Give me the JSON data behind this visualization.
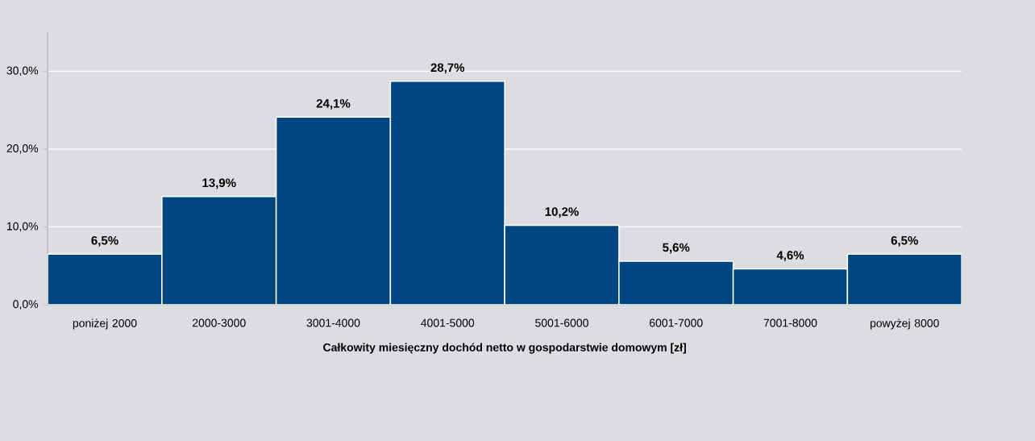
{
  "chart_data": {
    "type": "bar",
    "xlabel": "Całkowity miesięczny dochód netto w gospodarstwie domowym [zł]",
    "categories": [
      "poniżej 2000",
      "2000-3000",
      "3001-4000",
      "4001-5000",
      "5001-6000",
      "6001-7000",
      "7001-8000",
      "powyżej 8000"
    ],
    "values": [
      6.5,
      13.9,
      24.1,
      28.7,
      10.2,
      5.6,
      4.6,
      6.5
    ],
    "value_labels": [
      "6,5%",
      "13,9%",
      "24,1%",
      "28,7%",
      "10,2%",
      "5,6%",
      "4,6%",
      "6,5%"
    ],
    "color": "#004680",
    "ylim": [
      0,
      35
    ],
    "yticks": [
      {
        "value": 0,
        "label": "0,0%"
      },
      {
        "value": 10,
        "label": "10,0%"
      },
      {
        "value": 20,
        "label": "20,0%"
      },
      {
        "value": 30,
        "label": "30,0%"
      }
    ],
    "grid": "y"
  }
}
